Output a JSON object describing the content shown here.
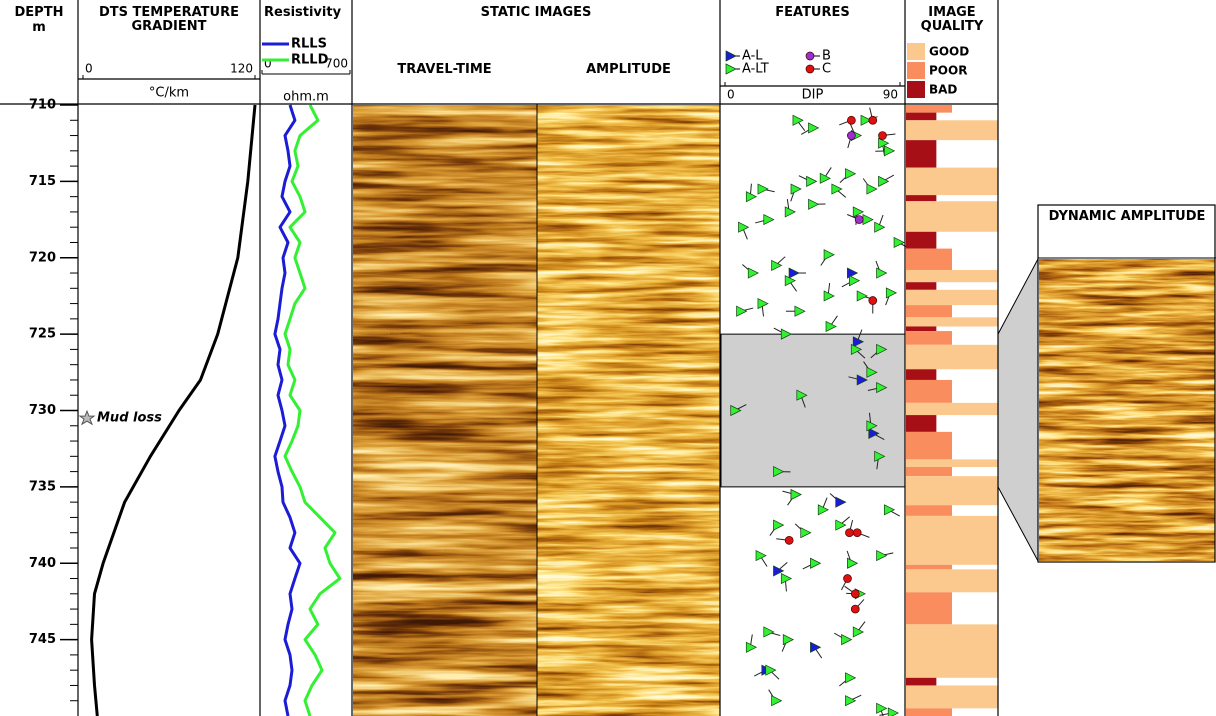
{
  "chart_data": [
    {
      "type": "depth",
      "title": "DEPTH",
      "unit": "m",
      "ylim": [
        710,
        750
      ],
      "yticks": [
        710,
        715,
        720,
        725,
        730,
        735,
        740,
        745
      ]
    },
    {
      "type": "line",
      "title": "DTS TEMPERATURE GRADIENT",
      "xlabel": "°C/km",
      "xlim": [
        0,
        120
      ],
      "xticks": [
        0,
        120
      ],
      "color": "#000000",
      "depth": [
        710,
        715,
        720,
        725,
        728,
        730,
        733,
        736,
        740,
        742,
        745,
        748,
        750
      ],
      "values": [
        120,
        115,
        108,
        94,
        82,
        67,
        47,
        29,
        14,
        8,
        6,
        8,
        10
      ],
      "annotation": {
        "text": "Mud loss",
        "depth": 730.5
      }
    },
    {
      "type": "line",
      "title": "Resistivity",
      "xlabel": "ohm.m",
      "xlim": [
        0,
        700
      ],
      "xticks": [
        0,
        700
      ],
      "depth": [
        710,
        711,
        712,
        713,
        714,
        715,
        716,
        717,
        718,
        719,
        720,
        721,
        722,
        723,
        724,
        725,
        726,
        727,
        728,
        729,
        730,
        731,
        732,
        733,
        734,
        735,
        736,
        737,
        738,
        739,
        740,
        741,
        742,
        743,
        744,
        745,
        746,
        747,
        748,
        749,
        750
      ],
      "series": [
        {
          "name": "RLLS",
          "color": "#1c1cd6",
          "values": [
            223,
            262,
            183,
            207,
            223,
            183,
            159,
            223,
            143,
            207,
            167,
            183,
            159,
            143,
            127,
            103,
            143,
            127,
            159,
            127,
            159,
            183,
            143,
            103,
            127,
            159,
            167,
            223,
            262,
            223,
            302,
            262,
            223,
            239,
            207,
            183,
            223,
            239,
            223,
            183,
            207
          ]
        },
        {
          "name": "RLLD",
          "color": "#33f033",
          "values": [
            382,
            445,
            302,
            262,
            286,
            239,
            302,
            342,
            223,
            302,
            262,
            302,
            342,
            262,
            223,
            183,
            223,
            207,
            262,
            223,
            302,
            286,
            239,
            183,
            239,
            302,
            342,
            461,
            581,
            501,
            541,
            620,
            461,
            382,
            445,
            342,
            422,
            477,
            398,
            342,
            382
          ]
        }
      ]
    },
    {
      "type": "image",
      "title": "STATIC IMAGES",
      "panels": [
        "TRAVEL-TIME",
        "AMPLITUDE"
      ]
    },
    {
      "type": "scatter",
      "title": "FEATURES",
      "xlabel": "DIP",
      "xlim": [
        0,
        90
      ],
      "xticks": [
        0,
        90
      ],
      "highlight": [
        725,
        735
      ],
      "series": [
        {
          "name": "A-L",
          "color": "#1c1cd6",
          "marker": "triangle",
          "depth": [
            721,
            721,
            728,
            725.5,
            731.5,
            735.5,
            736,
            740.5,
            745.5,
            747
          ],
          "values": [
            35,
            65,
            70,
            68,
            76,
            36,
            59,
            27,
            46,
            21
          ]
        },
        {
          "name": "A-LT",
          "color": "#33f033",
          "marker": "triangle",
          "depth": [
            711,
            711.5,
            712,
            711,
            712.5,
            713,
            716,
            715.5,
            715.5,
            715,
            714.8,
            715.5,
            714.5,
            715.5,
            715,
            718,
            717.5,
            717,
            716.5,
            717,
            717.5,
            718,
            719,
            719.8,
            721,
            720.5,
            721.5,
            721.5,
            721,
            723.5,
            723,
            723.5,
            722.5,
            722.5,
            722.3,
            725,
            724.5,
            726,
            726,
            727.5,
            730,
            729,
            728.5,
            731,
            734,
            733,
            735.5,
            736.5,
            736.5,
            737.5,
            738,
            737.5,
            739.5,
            740,
            740,
            739.5,
            741,
            742,
            745.5,
            744.5,
            745,
            745,
            744.5,
            747,
            747.5,
            749,
            749,
            749.5,
            749.8
          ],
          "values": [
            37,
            45,
            67,
            72,
            81,
            84,
            13,
            19,
            36,
            44,
            51,
            57,
            64,
            75,
            81,
            9,
            22,
            33,
            45,
            68,
            73,
            79,
            89,
            53,
            14,
            26,
            33,
            66,
            80,
            8,
            19,
            38,
            53,
            70,
            85,
            31,
            54,
            67,
            80,
            75,
            5,
            39,
            80,
            75,
            27,
            79,
            36,
            50,
            84,
            27,
            41,
            59,
            18,
            46,
            65,
            80,
            31,
            69,
            13,
            22,
            32,
            62,
            68,
            23,
            64,
            26,
            64,
            80,
            86
          ]
        },
        {
          "name": "B",
          "color": "#9b30d0",
          "marker": "circle",
          "depth": [
            712,
            717.5
          ],
          "values": [
            65,
            69
          ]
        },
        {
          "name": "C",
          "color": "#e01010",
          "marker": "circle",
          "depth": [
            711,
            711,
            712,
            722.8,
            738.5,
            738,
            738,
            741,
            742,
            743
          ],
          "values": [
            65,
            76,
            81,
            76,
            33,
            64,
            68,
            63,
            67,
            67
          ]
        }
      ]
    },
    {
      "type": "interval",
      "title": "IMAGE QUALITY",
      "classes": [
        {
          "name": "GOOD",
          "color": "#fbc98e"
        },
        {
          "name": "POOR",
          "color": "#f98d5e"
        },
        {
          "name": "BAD",
          "color": "#a50f15"
        }
      ],
      "boundaries": [
        710,
        710.5,
        711,
        712.3,
        714.1,
        715.9,
        716.3,
        718.3,
        719.4,
        720.8,
        721.6,
        722.1,
        723.1,
        723.9,
        724.5,
        724.8,
        725.7,
        727.3,
        728,
        729.5,
        730.3,
        731.4,
        733.2,
        733.7,
        734.3,
        736.2,
        736.9,
        740.1,
        740.4,
        741.9,
        744,
        747.5,
        748,
        749.5,
        750
      ],
      "quality": [
        "POOR",
        "BAD",
        "GOOD",
        "BAD",
        "GOOD",
        "BAD",
        "GOOD",
        "BAD",
        "POOR",
        "GOOD",
        "BAD",
        "GOOD",
        "POOR",
        "GOOD",
        "BAD",
        "POOR",
        "GOOD",
        "BAD",
        "POOR",
        "GOOD",
        "BAD",
        "POOR",
        "GOOD",
        "POOR",
        "GOOD",
        "POOR",
        "GOOD",
        "POOR",
        "GOOD",
        "POOR",
        "GOOD",
        "BAD",
        "GOOD",
        "POOR"
      ]
    },
    {
      "type": "image",
      "title": "DYNAMIC AMPLITUDE"
    }
  ]
}
